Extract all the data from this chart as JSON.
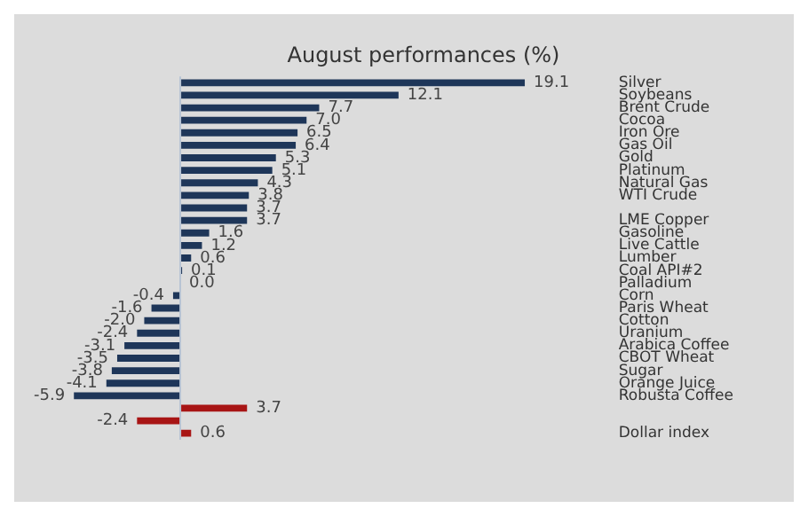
{
  "chart_data": {
    "type": "bar",
    "orientation": "horizontal",
    "title": "August performances (%)",
    "categories": [
      "Silver",
      "Soybeans",
      "Brent Crude",
      "Cocoa",
      "Iron Ore",
      "Gas Oil",
      "Gold",
      "Platinum",
      "Natural Gas",
      "WTI Crude",
      null,
      "LME Copper",
      "Gasoline",
      "Live Cattle",
      "Lumber",
      "Coal API#2",
      "Palladium",
      "Corn",
      "Paris Wheat",
      "Cotton",
      "Uranium",
      "Arabica Coffee",
      "CBOT Wheat",
      "Sugar",
      "Orange Juice",
      "Robusta Coffee",
      null,
      null,
      "Dollar index"
    ],
    "values": [
      19.1,
      12.1,
      7.7,
      7.0,
      6.5,
      6.4,
      5.3,
      5.1,
      4.3,
      3.8,
      3.7,
      3.7,
      1.6,
      1.2,
      0.6,
      0.1,
      0.0,
      -0.4,
      -1.6,
      -2.0,
      -2.4,
      -3.1,
      -3.5,
      -3.8,
      -4.1,
      -5.9,
      3.7,
      -2.4,
      0.6
    ],
    "value_labels": [
      "19.1",
      "12.1",
      "7.7",
      "7.0",
      "6.5",
      "6.4",
      "5.3",
      "5.1",
      "4.3",
      "3.8",
      "3.7",
      "3.7",
      "1.6",
      "1.2",
      "0.6",
      "0.1",
      "0.0",
      "-0.4",
      "-1.6",
      "-2.0",
      "-2.4",
      "-3.1",
      "-3.5",
      "-3.8",
      "-4.1",
      "-5.9",
      "3.7",
      "-2.4",
      "0.6"
    ],
    "colors": [
      "#1e3659",
      "#1e3659",
      "#1e3659",
      "#1e3659",
      "#1e3659",
      "#1e3659",
      "#1e3659",
      "#1e3659",
      "#1e3659",
      "#1e3659",
      "#1e3659",
      "#1e3659",
      "#1e3659",
      "#1e3659",
      "#1e3659",
      "#1e3659",
      "#1e3659",
      "#1e3659",
      "#1e3659",
      "#1e3659",
      "#1e3659",
      "#1e3659",
      "#1e3659",
      "#1e3659",
      "#1e3659",
      "#1e3659",
      "#a81515",
      "#a81515",
      "#a81515"
    ],
    "legend": false,
    "grid": false
  }
}
